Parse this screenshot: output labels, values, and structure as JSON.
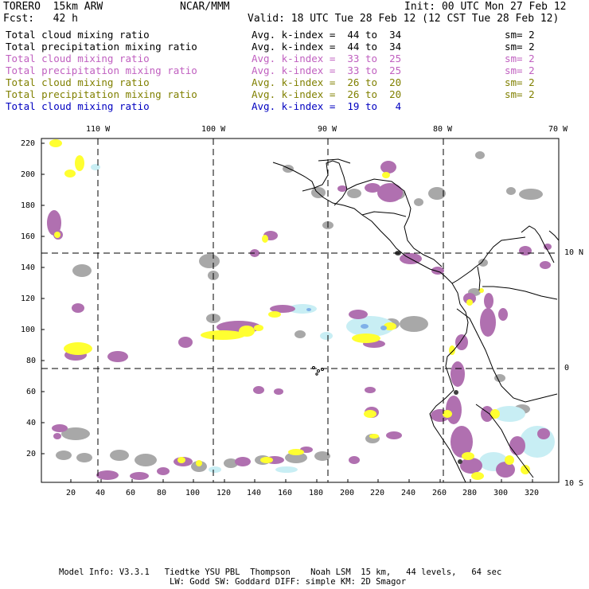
{
  "header": {
    "model": "TORERO  15km ARW",
    "org": "NCAR/MMM",
    "init": "Init: 00 UTC Mon 27 Feb 12",
    "fcst": "Fcst:   42 h",
    "valid": "Valid: 18 UTC Tue 28 Feb 12 (12 CST Tue 28 Feb 12)"
  },
  "legend": [
    {
      "field": "Total cloud mixing ratio",
      "kindex": "Avg. k-index =  44 to  34",
      "sm": "sm= 2",
      "color": "#000000"
    },
    {
      "field": "Total precipitation mixing ratio",
      "kindex": "Avg. k-index =  44 to  34",
      "sm": "sm= 2",
      "color": "#000000"
    },
    {
      "field": "Total cloud mixing ratio",
      "kindex": "Avg. k-index =  33 to  25",
      "sm": "sm= 2",
      "color": "#c060c0"
    },
    {
      "field": "Total precipitation mixing ratio",
      "kindex": "Avg. k-index =  33 to  25",
      "sm": "sm= 2",
      "color": "#c060c0"
    },
    {
      "field": "Total cloud mixing ratio",
      "kindex": "Avg. k-index =  26 to  20",
      "sm": "sm= 2",
      "color": "#808000"
    },
    {
      "field": "Total precipitation mixing ratio",
      "kindex": "Avg. k-index =  26 to  20",
      "sm": "sm= 2",
      "color": "#808000"
    },
    {
      "field": "Total cloud mixing ratio",
      "kindex": "Avg. k-index =  19 to   4",
      "sm": "",
      "color": "#0000c0"
    }
  ],
  "map": {
    "lon_labels": [
      "110 W",
      "100 W",
      "90 W",
      "80 W",
      "70 W"
    ],
    "lat_labels": [
      "10 N",
      "0",
      "10 S"
    ],
    "x_ticks": [
      "20",
      "40",
      "60",
      "80",
      "100",
      "120",
      "140",
      "160",
      "180",
      "200",
      "220",
      "240",
      "260",
      "280",
      "300",
      "320"
    ],
    "y_ticks": [
      "220",
      "200",
      "180",
      "160",
      "140",
      "120",
      "100",
      "80",
      "60",
      "40",
      "20"
    ],
    "colors": {
      "gray": "#a0a0a0",
      "purple": "#b070b0",
      "yellow": "#ffff30",
      "lightblue": "#c8eef4",
      "darkgray": "#505050"
    }
  },
  "footer": {
    "line1": "Model Info: V3.3.1   Tiedtke YSU PBL  Thompson    Noah LSM  15 km,   44 levels,   64 sec",
    "line2": "LW: Godd SW: Goddard DIFF: simple KM: 2D Smagor"
  }
}
